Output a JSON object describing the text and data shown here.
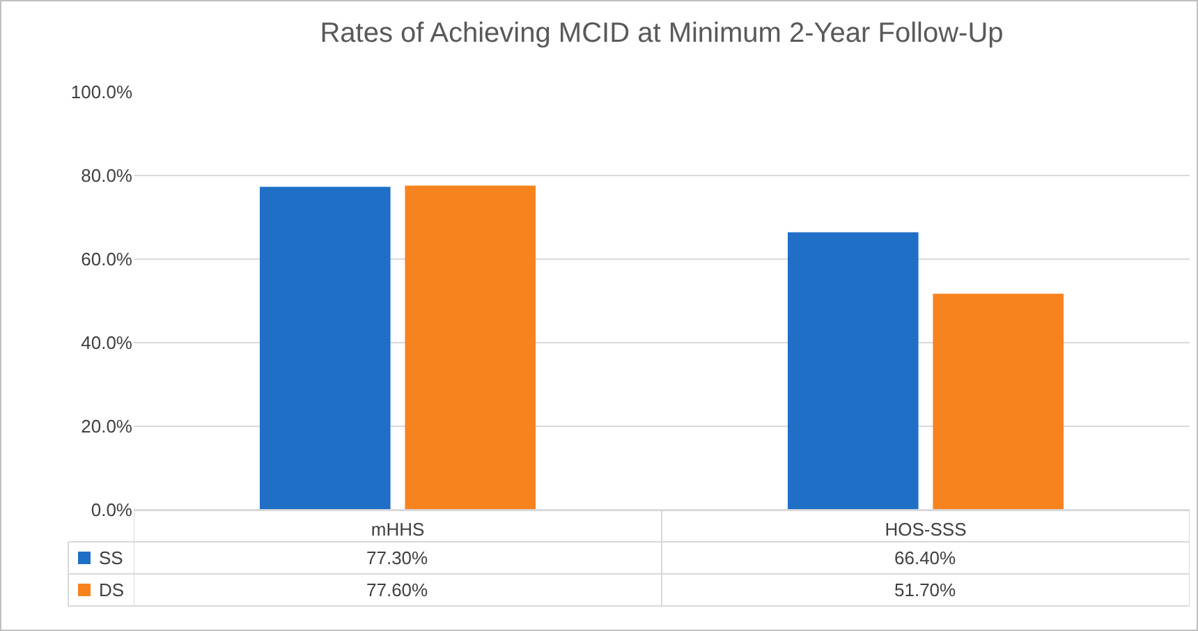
{
  "chart_data": {
    "type": "bar",
    "title": "Rates of Achieving MCID at Minimum 2-Year Follow-Up",
    "categories": [
      "mHHS",
      "HOS-SSS"
    ],
    "series": [
      {
        "name": "SS",
        "color": "#1f6fc6",
        "values": [
          77.3,
          66.4
        ],
        "value_labels": [
          "77.30%",
          "66.40%"
        ]
      },
      {
        "name": "DS",
        "color": "#f7831f",
        "values": [
          77.6,
          51.7
        ],
        "value_labels": [
          "77.60%",
          "51.70%"
        ]
      }
    ],
    "ylim": [
      0,
      100
    ],
    "yticks": [
      {
        "value": 0,
        "label": "0.0%"
      },
      {
        "value": 20,
        "label": "20.0%"
      },
      {
        "value": 40,
        "label": "40.0%"
      },
      {
        "value": 60,
        "label": "60.0%"
      },
      {
        "value": 80,
        "label": "80.0%"
      },
      {
        "value": 100,
        "label": "100.0%"
      }
    ],
    "grid": "y",
    "legend": "bottom"
  }
}
